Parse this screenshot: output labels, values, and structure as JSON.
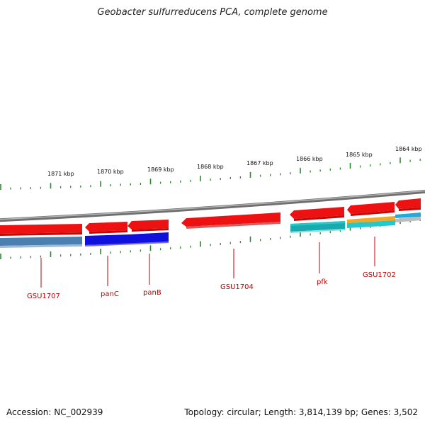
{
  "title": "Geobacter sulfurreducens PCA, complete genome",
  "accession": "Accession: NC_002939",
  "topology": "Topology: circular; Length: 3,814,139 bp; Genes: 3,502",
  "scale_labels": [
    "1871 kbp",
    "1870 kbp",
    "1869 kbp",
    "1868 kbp",
    "1867 kbp",
    "1866 kbp",
    "1865 kbp",
    "1864 kbp"
  ],
  "gene_labels": [
    "GSU1707",
    "panC",
    "panB",
    "GSU1704",
    "pfk",
    "GSU1702"
  ],
  "colors": {
    "backbone": "#8c8c8c",
    "tick": "#2e8b2e",
    "label": "#c00000",
    "red_feature": "#ee1111",
    "steel_blue_feature": "#4a7fb0",
    "blue_feature": "#1010dd",
    "cyan_feature": "#22c8cc",
    "orange_feature": "#f5a623",
    "gray_feature": "#bdbdbd"
  }
}
